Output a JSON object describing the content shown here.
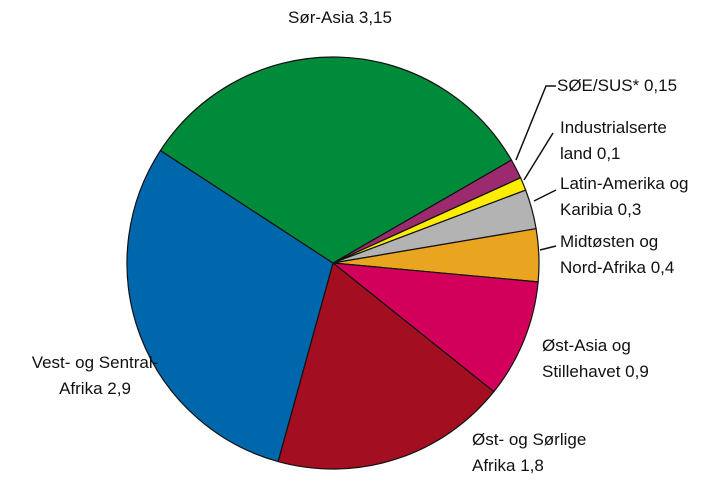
{
  "chart_data": {
    "type": "pie",
    "categories": [
      "SØE/SUS*",
      "Industrialserte land",
      "Latin-Amerika og Karibia",
      "Midtøsten og Nord-Afrika",
      "Øst-Asia og Stillehavet",
      "Øst- og Sørlige Afrika",
      "Vest- og Sentral-Afrika",
      "Sør-Asia"
    ],
    "values": [
      0.15,
      0.1,
      0.3,
      0.4,
      0.9,
      1.8,
      2.9,
      3.15
    ],
    "value_labels": [
      "0,15",
      "0,1",
      "0,3",
      "0,4",
      "0,9",
      "1,8",
      "2,9",
      "3,15"
    ],
    "colors": [
      "#9b2a6e",
      "#ffed00",
      "#b3b3b3",
      "#e9a520",
      "#d2005a",
      "#a30f20",
      "#0067ac",
      "#008b3b"
    ]
  }
}
